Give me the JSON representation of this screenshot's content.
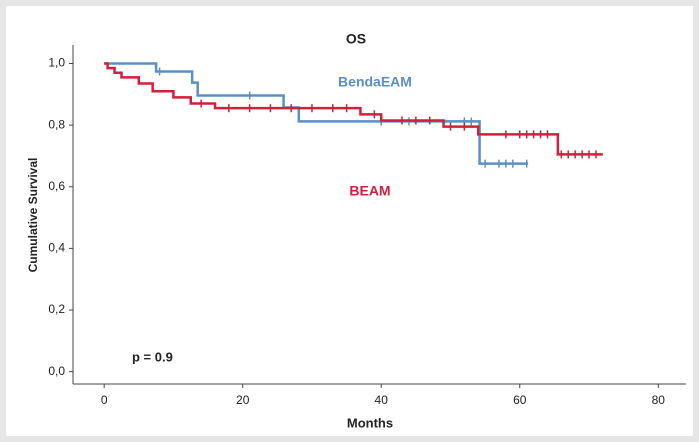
{
  "chart_data": {
    "type": "step",
    "title": "OS",
    "x_label": "Months",
    "y_label": "Cumulative Survival",
    "annotation": "p = 0.9",
    "xlim": [
      -4.5,
      84
    ],
    "ylim": [
      -0.04,
      1.06
    ],
    "xticks": [
      0,
      20,
      40,
      60,
      80
    ],
    "yticks": [
      {
        "value": 0,
        "label": "0,0"
      },
      {
        "value": 0.2,
        "label": "0,2"
      },
      {
        "value": 0.4,
        "label": "0,4"
      },
      {
        "value": 0.6,
        "label": "0,6"
      },
      {
        "value": 0.8,
        "label": "0,8"
      },
      {
        "value": 1,
        "label": "1,0"
      }
    ],
    "series": [
      {
        "name": "BendaEAM",
        "color": "#5b8fc9",
        "x": [
          0,
          7.5,
          12.7,
          13.5,
          25.9,
          28.1,
          54.2,
          61.2
        ],
        "values": [
          1,
          0.974,
          0.938,
          0.896,
          0.857,
          0.812,
          0.675,
          0.675
        ],
        "censored_x": [
          8,
          21,
          40,
          44,
          52,
          53,
          55,
          57,
          58,
          59,
          61
        ],
        "censored_values": [
          0.974,
          0.896,
          0.812,
          0.812,
          0.812,
          0.812,
          0.675,
          0.675,
          0.675,
          0.675,
          0.675
        ]
      },
      {
        "name": "BEAM",
        "color": "#d21f3c",
        "x": [
          0,
          0.5,
          1.5,
          2.5,
          5,
          7,
          10,
          12.5,
          16,
          37,
          40,
          49,
          54,
          65.5,
          72
        ],
        "values": [
          1,
          0.985,
          0.97,
          0.955,
          0.935,
          0.91,
          0.89,
          0.87,
          0.855,
          0.835,
          0.815,
          0.795,
          0.77,
          0.705,
          0.705
        ],
        "censored_x": [
          14,
          18,
          21,
          24,
          27,
          30,
          33,
          35,
          39,
          43,
          45,
          47,
          50,
          52,
          58,
          60,
          61,
          62,
          63,
          64,
          66,
          67,
          68,
          69,
          70,
          71
        ],
        "censored_values": [
          0.87,
          0.855,
          0.855,
          0.855,
          0.855,
          0.855,
          0.855,
          0.855,
          0.835,
          0.815,
          0.815,
          0.815,
          0.795,
          0.795,
          0.77,
          0.77,
          0.77,
          0.77,
          0.77,
          0.77,
          0.705,
          0.705,
          0.705,
          0.705,
          0.705,
          0.705
        ]
      }
    ]
  }
}
